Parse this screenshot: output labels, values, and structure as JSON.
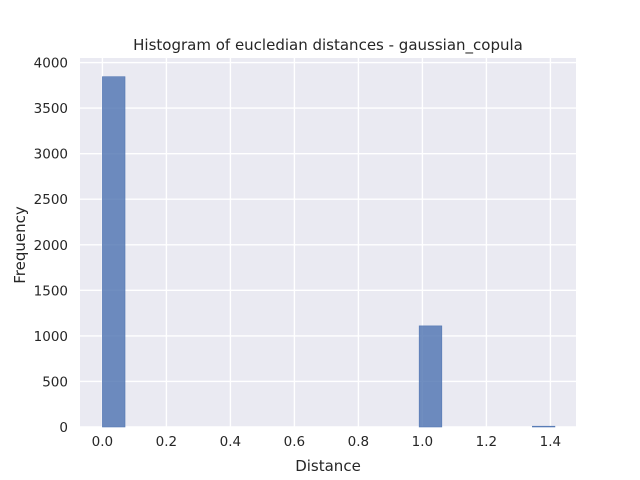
{
  "chart_data": {
    "type": "bar",
    "title": "Histogram of eucledian distances - gaussian_copula",
    "xlabel": "Distance",
    "ylabel": "Frequency",
    "xlim": [
      -0.07,
      1.48
    ],
    "ylim": [
      0,
      4050
    ],
    "x_ticks": [
      "0.0",
      "0.2",
      "0.4",
      "0.6",
      "0.8",
      "1.0",
      "1.2",
      "1.4"
    ],
    "y_ticks": [
      "0",
      "500",
      "1000",
      "1500",
      "2000",
      "2500",
      "3000",
      "3500",
      "4000"
    ],
    "bins": [
      {
        "x0": 0.0,
        "x1": 0.0707,
        "count": 3845
      },
      {
        "x0": 0.9899,
        "x1": 1.0607,
        "count": 1110
      },
      {
        "x0": 1.3435,
        "x1": 1.4142,
        "count": 3
      }
    ],
    "grid": true,
    "colors": {
      "bar": "#4c72b0",
      "background": "#eaeaf2",
      "grid": "#ffffff"
    }
  }
}
